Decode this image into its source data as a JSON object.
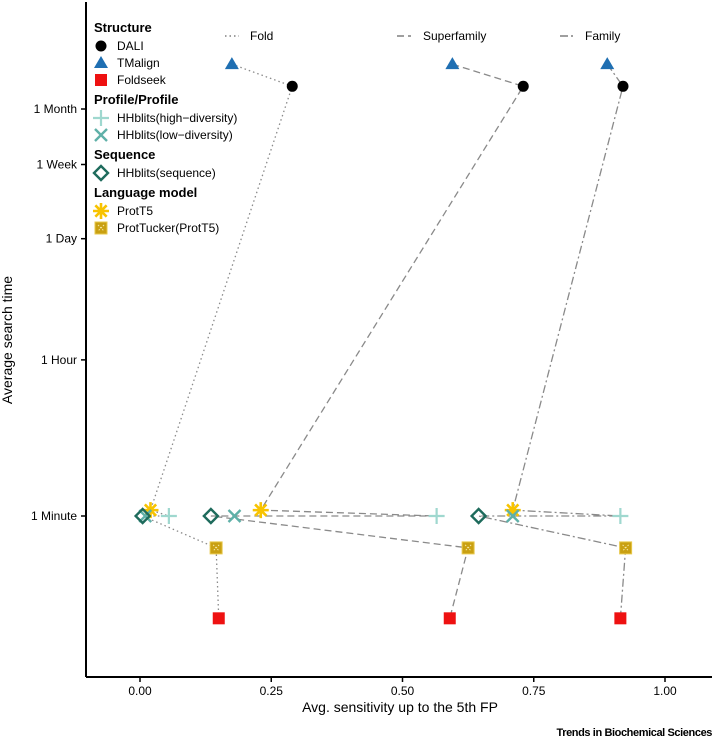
{
  "chart_data": {
    "type": "scatter",
    "title": "",
    "xlabel": "Avg. sensitivity up to the 5th FP",
    "ylabel": "Average search time",
    "xlim": [
      -0.1,
      1.09
    ],
    "y_scale": "log",
    "y_unit": "seconds",
    "x_ticks": [
      {
        "value": 0,
        "label": "0.00"
      },
      {
        "value": 0.25,
        "label": "0.25"
      },
      {
        "value": 0.5,
        "label": "0.50"
      },
      {
        "value": 0.75,
        "label": "0.75"
      },
      {
        "value": 1,
        "label": "1.00"
      }
    ],
    "y_ticks": [
      {
        "value": 2592000,
        "label": "1 Month"
      },
      {
        "value": 604800,
        "label": "1 Week"
      },
      {
        "value": 86400,
        "label": "1 Day"
      },
      {
        "value": 3600,
        "label": "1 Hour"
      },
      {
        "value": 60,
        "label": "1 Minute"
      }
    ],
    "groups": [
      {
        "name": "Structure",
        "methods": [
          {
            "name": "DALI",
            "marker": "circle",
            "color": "#000000"
          },
          {
            "name": "TMalign",
            "marker": "triangle",
            "color": "#1f6fb2"
          },
          {
            "name": "Foldseek",
            "marker": "square",
            "color": "#ee1111"
          }
        ]
      },
      {
        "name": "Profile/Profile",
        "methods": [
          {
            "name": "HHblits(high−diversity)",
            "marker": "plus",
            "color": "#9fd8cf"
          },
          {
            "name": "HHblits(low−diversity)",
            "marker": "cross",
            "color": "#5fb0a8"
          }
        ]
      },
      {
        "name": "Sequence",
        "methods": [
          {
            "name": "HHblits(sequence)",
            "marker": "diamond",
            "color": "#1e6b5c"
          }
        ]
      },
      {
        "name": "Language model",
        "methods": [
          {
            "name": "ProtT5",
            "marker": "asterisk",
            "color": "#f8c300"
          },
          {
            "name": "ProtTucker(ProtT5)",
            "marker": "boxx",
            "color": "#c9a012"
          }
        ]
      }
    ],
    "levels": [
      {
        "name": "Fold",
        "linetype": "dotted"
      },
      {
        "name": "Superfamily",
        "linetype": "dashed"
      },
      {
        "name": "Family",
        "linetype": "dashdot"
      }
    ],
    "points": [
      {
        "method": "TMalign",
        "time": 8400000,
        "Fold": 0.175,
        "Superfamily": 0.595,
        "Family": 0.89
      },
      {
        "method": "DALI",
        "time": 4700000,
        "Fold": 0.29,
        "Superfamily": 0.73,
        "Family": 0.92
      },
      {
        "method": "ProtT5",
        "time": 70,
        "Fold": 0.02,
        "Superfamily": 0.23,
        "Family": 0.71
      },
      {
        "method": "HHblits(high−diversity)",
        "time": 60,
        "Fold": 0.055,
        "Superfamily": 0.565,
        "Family": 0.915
      },
      {
        "method": "HHblits(low−diversity)",
        "time": 60,
        "Fold": 0.01,
        "Superfamily": 0.18,
        "Family": 0.71
      },
      {
        "method": "HHblits(sequence)",
        "time": 60,
        "Fold": 0.005,
        "Superfamily": 0.135,
        "Family": 0.645
      },
      {
        "method": "ProtTucker(ProtT5)",
        "time": 26,
        "Fold": 0.145,
        "Superfamily": 0.625,
        "Family": 0.925
      },
      {
        "method": "Foldseek",
        "time": 4.1,
        "Fold": 0.15,
        "Superfamily": 0.59,
        "Family": 0.915
      }
    ]
  },
  "credit": "Trends in Biochemical Sciences"
}
